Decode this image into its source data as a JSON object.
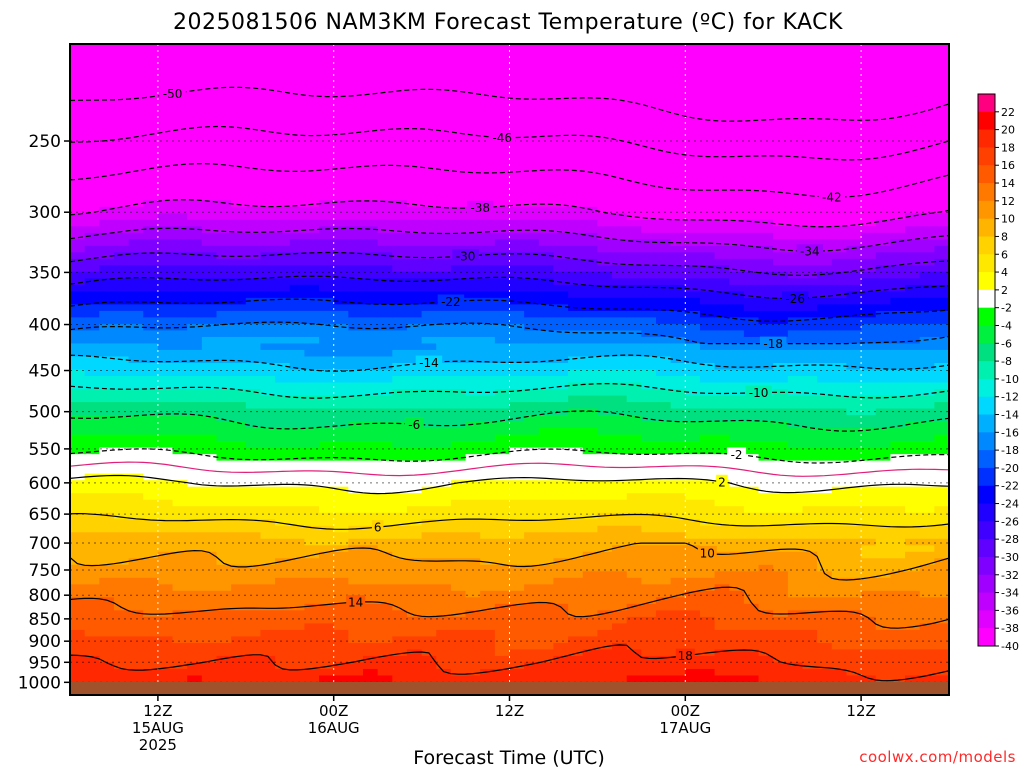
{
  "title": "2025081506 NAM3KM Forecast Temperature (ºC) for KACK",
  "xlabel": "Forecast Time (UTC)",
  "credit": "coolwx.com/models",
  "chart_data": {
    "type": "heatmap",
    "title": "2025081506 NAM3KM Forecast Temperature (ºC) for KACK",
    "xlabel": "Forecast Time (UTC)",
    "ylabel": "",
    "y_scale": "log-pressure (hPa), inverted",
    "ylim": [
      1033,
      195
    ],
    "xlim": [
      "2025-08-15 06Z",
      "2025-08-17 18Z"
    ],
    "x_ticks": [
      {
        "lines": [
          "12Z",
          "15AUG",
          "2025"
        ],
        "time": "2025-08-15 12Z"
      },
      {
        "lines": [
          "00Z",
          "16AUG"
        ],
        "time": "2025-08-16 00Z"
      },
      {
        "lines": [
          "12Z"
        ],
        "time": "2025-08-16 12Z"
      },
      {
        "lines": [
          "00Z",
          "17AUG"
        ],
        "time": "2025-08-17 00Z"
      },
      {
        "lines": [
          "12Z"
        ],
        "time": "2025-08-17 12Z"
      }
    ],
    "y_ticks": [
      250,
      300,
      350,
      400,
      450,
      500,
      550,
      600,
      650,
      700,
      750,
      800,
      850,
      900,
      950,
      1000
    ],
    "grid": true,
    "colorbar": {
      "position": "right",
      "labels": [
        22,
        20,
        18,
        16,
        14,
        12,
        10,
        8,
        6,
        4,
        2,
        -2,
        -4,
        -6,
        -8,
        -10,
        -12,
        -14,
        -16,
        -18,
        -20,
        -22,
        -24,
        -26,
        -28,
        -30,
        -32,
        -34,
        -36,
        -38,
        -40
      ],
      "colors": [
        "#ff0080",
        "#ff0000",
        "#ff2800",
        "#ff4000",
        "#ff5a00",
        "#ff7800",
        "#ff9600",
        "#ffb400",
        "#ffd200",
        "#ffe800",
        "#ffff00",
        "#ffffff",
        "#00ff00",
        "#00f040",
        "#00e080",
        "#00f0b0",
        "#00f0e0",
        "#00d8ff",
        "#00b0ff",
        "#0088ff",
        "#0060ff",
        "#0030ff",
        "#0000ff",
        "#2000ff",
        "#4000ff",
        "#6000ff",
        "#8000ff",
        "#a000ff",
        "#c000ff",
        "#e000ff",
        "#ff00ff"
      ]
    },
    "isotherms": [
      {
        "temp": -50,
        "labels": [
          "-50"
        ]
      },
      {
        "temp": -46,
        "labels": [
          "-46"
        ]
      },
      {
        "temp": -42,
        "labels": [
          "-42"
        ]
      },
      {
        "temp": -38,
        "labels": [
          "-38"
        ]
      },
      {
        "temp": -34,
        "labels": [
          "-34"
        ]
      },
      {
        "temp": -30,
        "labels": [
          "-30"
        ]
      },
      {
        "temp": -26,
        "labels": [
          "-26"
        ]
      },
      {
        "temp": -22,
        "labels": [
          "-22"
        ]
      },
      {
        "temp": -18,
        "labels": [
          "-18"
        ]
      },
      {
        "temp": -14,
        "labels": [
          "-14"
        ]
      },
      {
        "temp": -10,
        "labels": [
          "-10"
        ]
      },
      {
        "temp": -6,
        "labels": [
          "-6"
        ]
      },
      {
        "temp": -2,
        "labels": [
          "-2"
        ]
      },
      {
        "temp": 0,
        "labels": []
      },
      {
        "temp": 2,
        "labels": [
          "2"
        ]
      },
      {
        "temp": 6,
        "labels": [
          "6"
        ]
      },
      {
        "temp": 10,
        "labels": [
          "10"
        ]
      },
      {
        "temp": 14,
        "labels": [
          "14"
        ]
      },
      {
        "temp": 18,
        "labels": [
          "18"
        ]
      }
    ],
    "surface_color": "#a0522d"
  }
}
